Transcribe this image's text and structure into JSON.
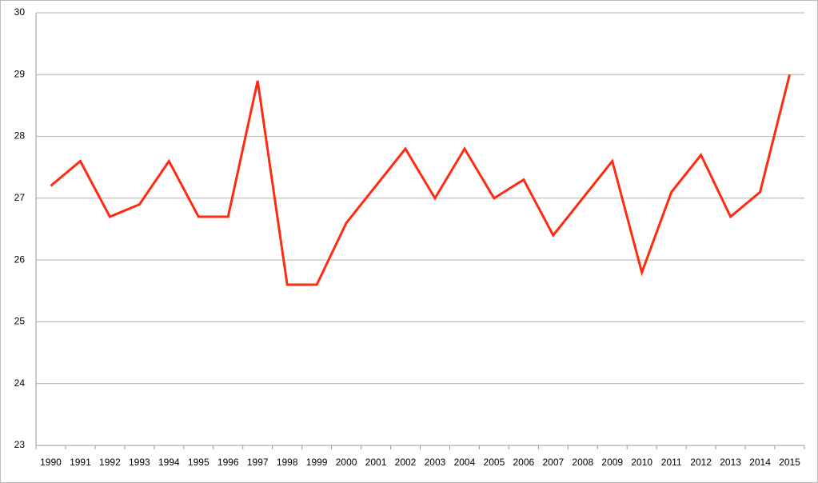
{
  "chart_data": {
    "type": "line",
    "categories": [
      "1990",
      "1991",
      "1992",
      "1993",
      "1994",
      "1995",
      "1996",
      "1997",
      "1998",
      "1999",
      "2000",
      "2001",
      "2002",
      "2003",
      "2004",
      "2005",
      "2006",
      "2007",
      "2008",
      "2009",
      "2010",
      "2011",
      "2012",
      "2013",
      "2014",
      "2015"
    ],
    "values": [
      27.2,
      27.6,
      26.7,
      26.9,
      27.6,
      26.7,
      26.7,
      28.9,
      25.6,
      25.6,
      26.6,
      27.2,
      27.8,
      27.0,
      27.8,
      27.0,
      27.3,
      26.4,
      27.0,
      27.6,
      25.8,
      27.1,
      27.7,
      26.7,
      27.1,
      29.0
    ],
    "color": "#ff2a0f",
    "ylim": [
      23,
      30
    ],
    "yticks": [
      23,
      24,
      25,
      26,
      27,
      28,
      29,
      30
    ],
    "grid": true
  }
}
